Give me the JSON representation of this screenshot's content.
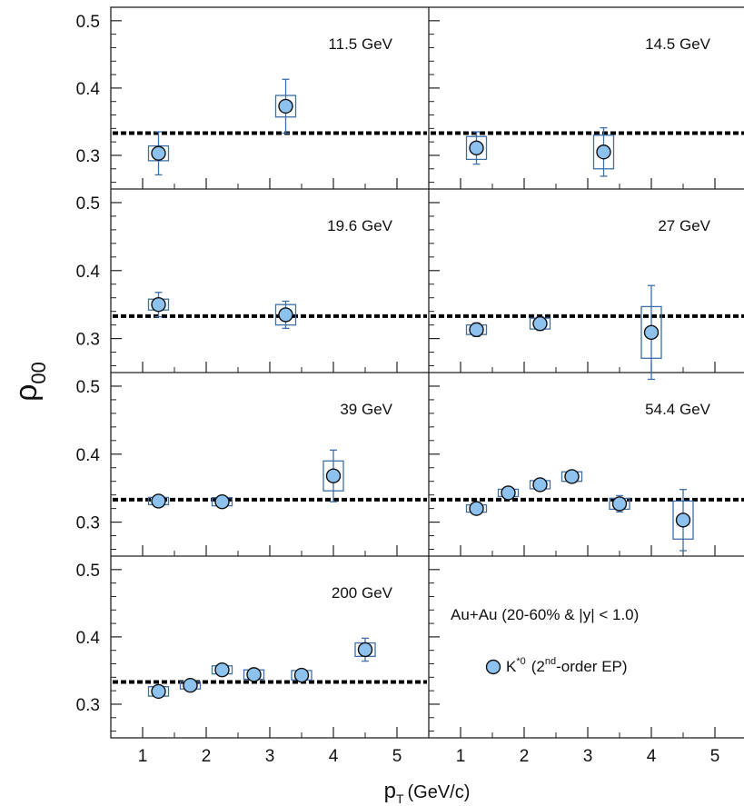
{
  "chart_data": {
    "type": "scatter",
    "ylabel": "ρ00",
    "ylabel_symbol": "ρ",
    "ylabel_subscript": "00",
    "xlabel": "pT (GeV/c)",
    "xlabel_p": "p",
    "xlabel_sub": "T",
    "xlabel_unit": "(GeV/c)",
    "xlim": [
      0.5,
      5.5
    ],
    "ylim": [
      0.25,
      0.52
    ],
    "x_ticks": [
      "1",
      "2",
      "3",
      "4",
      "5"
    ],
    "y_ticks": [
      "0.3",
      "0.4",
      "0.5"
    ],
    "reference_line": 0.333,
    "colors": {
      "marker": "#8ec2ee",
      "error": "#3d6fa8",
      "frame": "#222222",
      "ref_line": "#000000"
    },
    "panels": [
      {
        "label": "11.5 GeV",
        "points": [
          {
            "x": 1.25,
            "y": 0.303,
            "stat": 0.032,
            "sys": 0.011
          },
          {
            "x": 3.25,
            "y": 0.373,
            "stat": 0.04,
            "sys": 0.016
          }
        ]
      },
      {
        "label": "14.5 GeV",
        "points": [
          {
            "x": 1.25,
            "y": 0.311,
            "stat": 0.024,
            "sys": 0.017
          },
          {
            "x": 3.25,
            "y": 0.305,
            "stat": 0.036,
            "sys": 0.025
          }
        ]
      },
      {
        "label": "19.6 GeV",
        "points": [
          {
            "x": 1.25,
            "y": 0.35,
            "stat": 0.018,
            "sys": 0.008
          },
          {
            "x": 3.25,
            "y": 0.335,
            "stat": 0.02,
            "sys": 0.015
          }
        ]
      },
      {
        "label": "27 GeV",
        "points": [
          {
            "x": 1.25,
            "y": 0.313,
            "stat": 0.01,
            "sys": 0.007
          },
          {
            "x": 2.25,
            "y": 0.322,
            "stat": 0.01,
            "sys": 0.008
          },
          {
            "x": 4.0,
            "y": 0.309,
            "stat": 0.069,
            "sys": 0.038
          }
        ]
      },
      {
        "label": "39 GeV",
        "points": [
          {
            "x": 1.25,
            "y": 0.331,
            "stat": 0.005,
            "sys": 0.005
          },
          {
            "x": 2.25,
            "y": 0.33,
            "stat": 0.006,
            "sys": 0.006
          },
          {
            "x": 4.0,
            "y": 0.368,
            "stat": 0.038,
            "sys": 0.022
          }
        ]
      },
      {
        "label": "54.4 GeV",
        "points": [
          {
            "x": 1.25,
            "y": 0.32,
            "stat": 0.005,
            "sys": 0.005
          },
          {
            "x": 1.75,
            "y": 0.343,
            "stat": 0.005,
            "sys": 0.005
          },
          {
            "x": 2.25,
            "y": 0.355,
            "stat": 0.006,
            "sys": 0.006
          },
          {
            "x": 2.75,
            "y": 0.367,
            "stat": 0.007,
            "sys": 0.007
          },
          {
            "x": 3.5,
            "y": 0.327,
            "stat": 0.012,
            "sys": 0.008
          },
          {
            "x": 4.5,
            "y": 0.303,
            "stat": 0.045,
            "sys": 0.028
          }
        ]
      },
      {
        "label": "200 GeV",
        "points": [
          {
            "x": 1.25,
            "y": 0.319,
            "stat": 0.005,
            "sys": 0.007
          },
          {
            "x": 1.75,
            "y": 0.328,
            "stat": 0.005,
            "sys": 0.005
          },
          {
            "x": 2.25,
            "y": 0.351,
            "stat": 0.006,
            "sys": 0.006
          },
          {
            "x": 2.75,
            "y": 0.344,
            "stat": 0.006,
            "sys": 0.007
          },
          {
            "x": 3.5,
            "y": 0.343,
            "stat": 0.008,
            "sys": 0.007
          },
          {
            "x": 4.5,
            "y": 0.381,
            "stat": 0.017,
            "sys": 0.01
          }
        ]
      }
    ],
    "info": {
      "system": "Au+Au (20-60% & |y| < 1.0)",
      "legend_particle": "K",
      "legend_particle_sup": "*0",
      "legend_pre": "(2",
      "legend_sup": "nd",
      "legend_post": "-order EP)"
    }
  }
}
